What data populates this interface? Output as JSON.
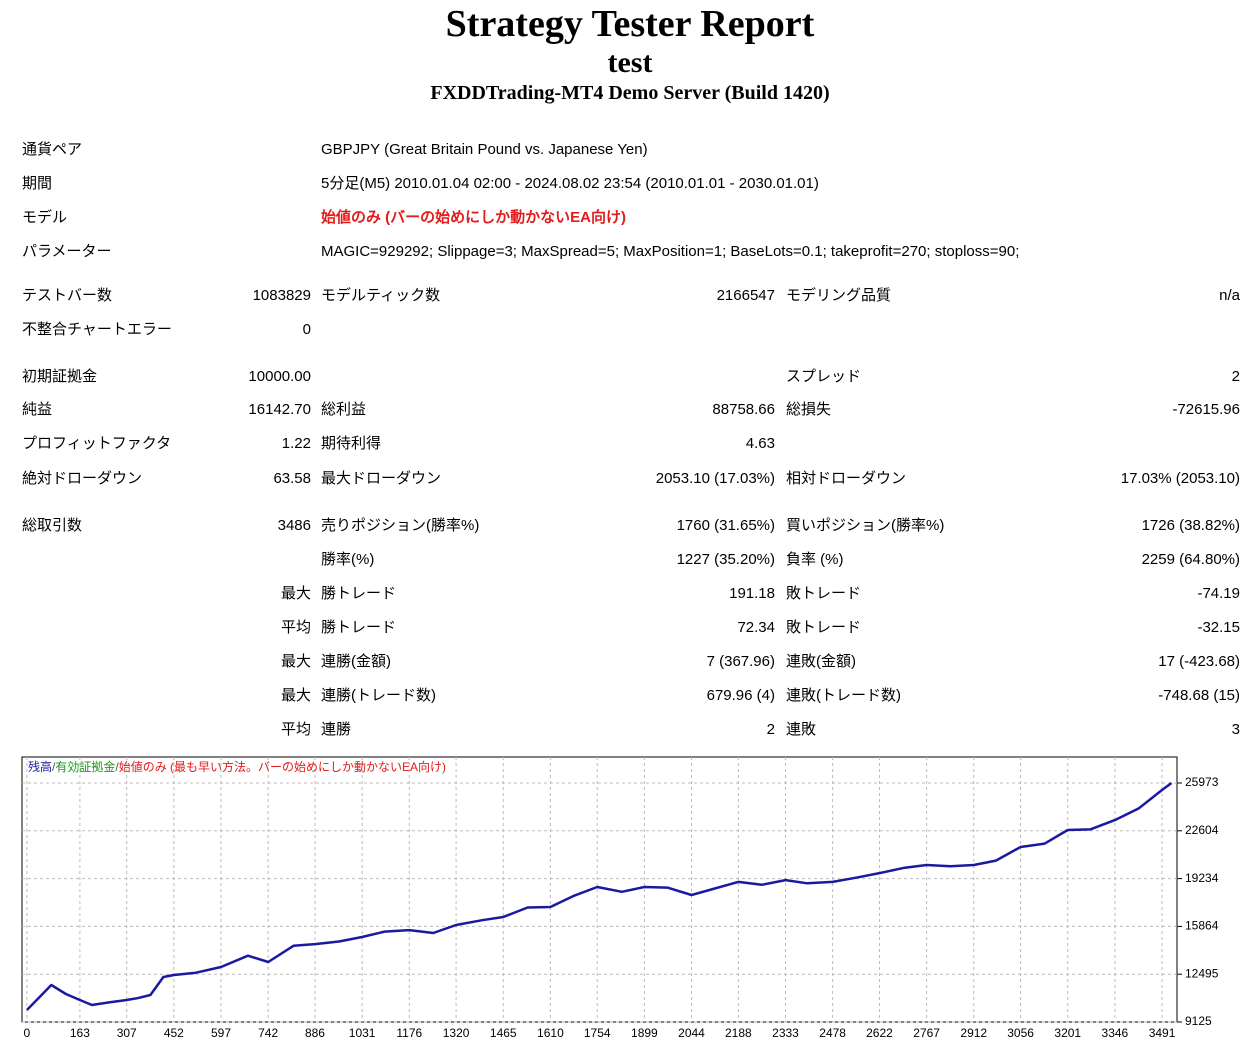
{
  "header": {
    "title": "Strategy Tester Report",
    "subtitle": "test",
    "server": "FXDDTrading-MT4 Demo Server (Build 1420)"
  },
  "info": [
    {
      "label": "通貨ペア",
      "value": "GBPJPY (Great Britain Pound vs. Japanese Yen)"
    },
    {
      "label": "期間",
      "value": "5分足(M5) 2010.01.04 02:00 - 2024.08.02 23:54 (2010.01.01 - 2030.01.01)"
    },
    {
      "label": "モデル",
      "value": "始値のみ (バーの始めにしか動かないEA向け)"
    },
    {
      "label": "パラメーター",
      "value": "MAGIC=929292; Slippage=3; MaxSpread=5; MaxPosition=1; BaseLots=0.1; takeprofit=270; stoploss=90;"
    }
  ],
  "stats": [
    [
      "テストバー数",
      "1083829",
      "モデルティック数",
      "2166547",
      "モデリング品質",
      "n/a"
    ],
    [
      "不整合チャートエラー",
      "0",
      null,
      null,
      null,
      null
    ],
    [
      "初期証拠金",
      "10000.00",
      null,
      null,
      "スプレッド",
      "2"
    ],
    [
      "純益",
      "16142.70",
      "総利益",
      "88758.66",
      "総損失",
      "-72615.96"
    ],
    [
      "プロフィットファクタ",
      "1.22",
      "期待利得",
      "4.63",
      null,
      null
    ],
    [
      "絶対ドローダウン",
      "63.58",
      "最大ドローダウン",
      "2053.10 (17.03%)",
      "相対ドローダウン",
      "17.03% (2053.10)"
    ],
    [
      "総取引数",
      "3486",
      "売りポジション(勝率%)",
      "1760 (31.65%)",
      "買いポジション(勝率%)",
      "1726 (38.82%)"
    ],
    [
      null,
      null,
      "勝率(%)",
      "1227 (35.20%)",
      "負率 (%)",
      "2259 (64.80%)"
    ],
    [
      null,
      "最大",
      "勝トレード",
      "191.18",
      "敗トレード",
      "-74.19"
    ],
    [
      null,
      "平均",
      "勝トレード",
      "72.34",
      "敗トレード",
      "-32.15"
    ],
    [
      null,
      "最大",
      "連勝(金額)",
      "7 (367.96)",
      "連敗(金額)",
      "17 (-423.68)"
    ],
    [
      null,
      "最大",
      "連勝(トレード数)",
      "679.96 (4)",
      "連敗(トレード数)",
      "-748.68 (15)"
    ],
    [
      null,
      "平均",
      "連勝",
      "2",
      "連敗",
      "3"
    ]
  ],
  "chart_data": {
    "type": "line",
    "legend": {
      "separator": "/",
      "equity": "有効証拠金",
      "equity_color": "#1a9a1a",
      "model": "始値のみ (最も早い方法。バーの始めにしか動かないEA向け)",
      "model_color": "#e31b1b"
    },
    "x": [
      0,
      40,
      75,
      120,
      163,
      200,
      250,
      307,
      340,
      380,
      420,
      452,
      520,
      597,
      680,
      742,
      820,
      886,
      960,
      1031,
      1100,
      1176,
      1250,
      1320,
      1400,
      1465,
      1540,
      1610,
      1680,
      1754,
      1830,
      1899,
      1970,
      2044,
      2110,
      2188,
      2260,
      2333,
      2400,
      2478,
      2550,
      2622,
      2700,
      2767,
      2840,
      2912,
      2980,
      3056,
      3130,
      3201,
      3270,
      3346,
      3420,
      3491,
      3520
    ],
    "series": [
      {
        "name": "残高",
        "color": "#1a1aa0",
        "values": [
          9971,
          10900,
          11730,
          11100,
          10675,
          10323,
          10500,
          10675,
          10800,
          11030,
          12300,
          12437,
          12600,
          13000,
          13800,
          13355,
          14500,
          14620,
          14800,
          15115,
          15500,
          15600,
          15400,
          15960,
          16300,
          16525,
          17200,
          17230,
          18000,
          18640,
          18300,
          18640,
          18600,
          18075,
          18500,
          19000,
          18800,
          19130,
          18900,
          19000,
          19300,
          19625,
          20000,
          20190,
          20100,
          20190,
          20500,
          21460,
          21700,
          22660,
          22700,
          23360,
          24200,
          25480,
          25973
        ]
      }
    ],
    "xlim": [
      -15,
      3537
    ],
    "ylim": [
      9125,
      27806
    ],
    "xticks": [
      0,
      163,
      307,
      452,
      597,
      742,
      886,
      1031,
      1176,
      1320,
      1465,
      1610,
      1754,
      1899,
      2044,
      2188,
      2333,
      2478,
      2622,
      2767,
      2912,
      3056,
      3201,
      3346,
      3491
    ],
    "yticks": [
      9125,
      12495,
      15864,
      19234,
      22604,
      25973
    ],
    "grid": true
  }
}
